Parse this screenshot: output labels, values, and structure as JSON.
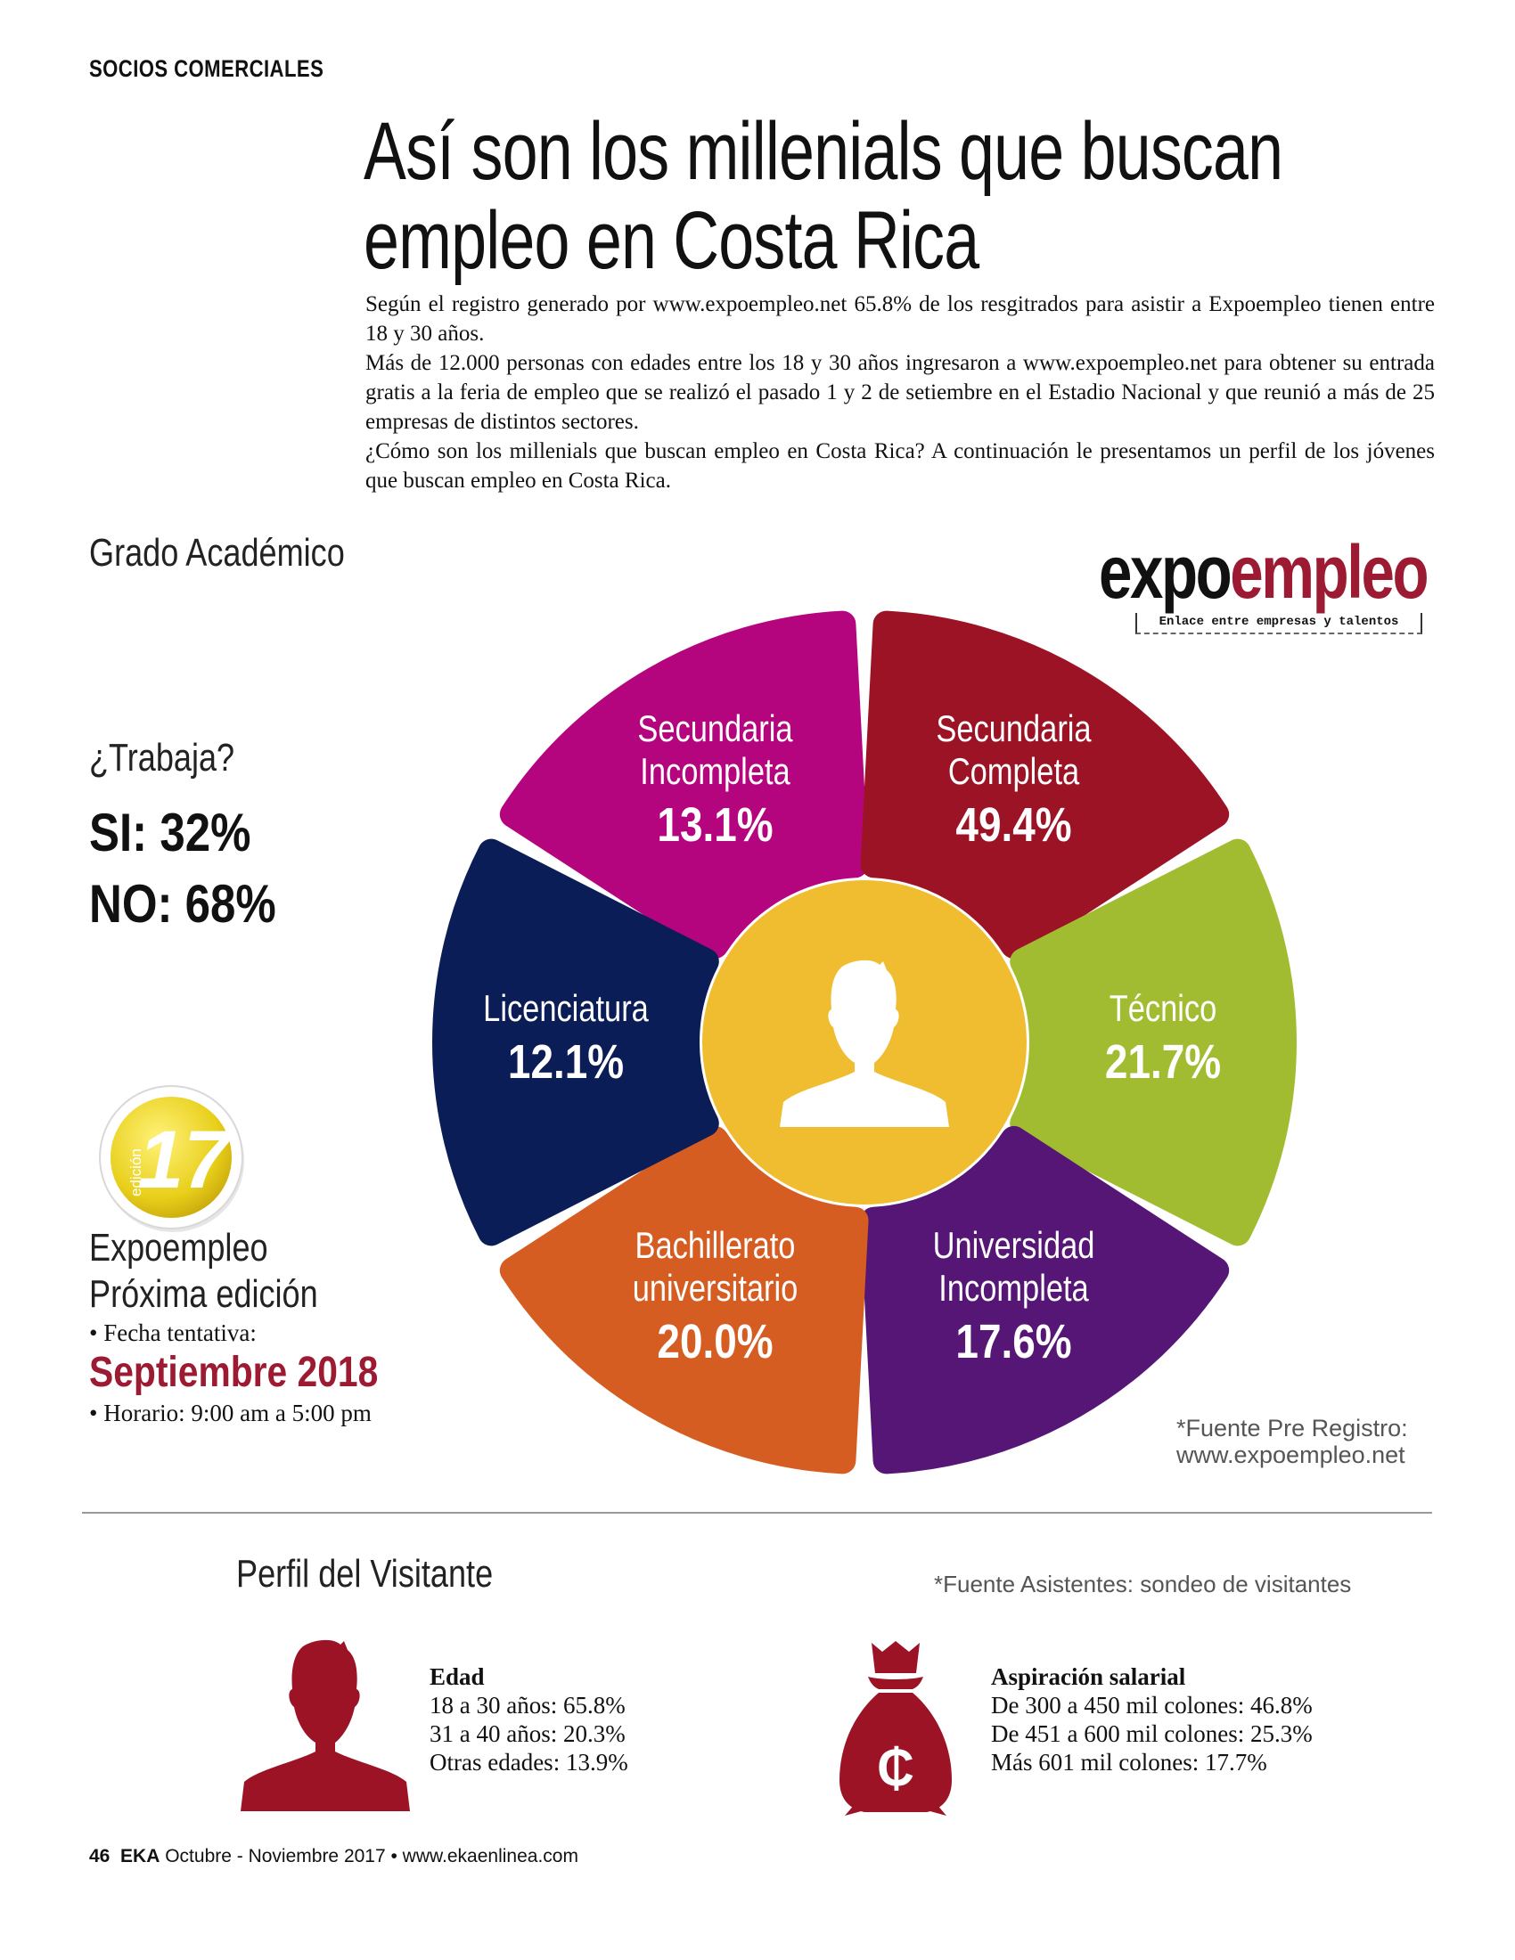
{
  "section_label": "SOCIOS COMERCIALES",
  "headline": {
    "line1": "Así son los millenials que buscan",
    "line2": "empleo en Costa Rica"
  },
  "intro": {
    "p1": "Según el registro generado por www.expoempleo.net 65.8% de los resgitrados para asistir a Expoempleo tienen entre 18 y 30 años.",
    "p2": "Más de 12.000 personas con edades entre los 18 y 30 años ingresaron a www.expoempleo.net para obtener su entrada gratis a la feria de empleo que se realizó el pasado 1 y 2 de setiembre en el Estadio Nacional y que reunió a más de 25 empresas de distintos sectores.",
    "p3": "¿Cómo son los millenials que buscan empleo en Costa Rica? A continuación le presentamos un perfil de los jóvenes que buscan empleo en Costa Rica."
  },
  "grado_heading": "Grado Académico",
  "logo": {
    "expo": "expo",
    "empleo": "empleo",
    "tagline": "Enlace entre empresas y talentos"
  },
  "trabaja": {
    "question": "¿Trabaja?",
    "si": "SI: 32%",
    "no": "NO: 68%"
  },
  "chart_data": {
    "type": "pie",
    "title": "Grado Académico",
    "slices": [
      {
        "label_line1": "Secundaria",
        "label_line2": "Incompleta",
        "value": 13.1,
        "display": "13.1%",
        "color": "#b5057e"
      },
      {
        "label_line1": "Secundaria",
        "label_line2": "Completa",
        "value": 49.4,
        "display": "49.4%",
        "color": "#9c1326"
      },
      {
        "label_line1": "Técnico",
        "label_line2": "",
        "value": 21.7,
        "display": "21.7%",
        "color": "#a2bc31"
      },
      {
        "label_line1": "Universidad",
        "label_line2": "Incompleta",
        "value": 17.6,
        "display": "17.6%",
        "color": "#561675"
      },
      {
        "label_line1": "Bachillerato",
        "label_line2": "universitario",
        "value": 20.0,
        "display": "20.0%",
        "color": "#d55d22"
      },
      {
        "label_line1": "Licenciatura",
        "label_line2": "",
        "value": 12.1,
        "display": "12.1%",
        "color": "#0b1d56"
      }
    ],
    "center_color": "#efbd2f",
    "center_icon": "person-silhouette-icon"
  },
  "edition": {
    "word": "edición",
    "number": "17"
  },
  "next_edition": {
    "line1": "Expoempleo",
    "line2": "Próxima edición",
    "date_label": "• Fecha tentativa:",
    "date": "Septiembre 2018",
    "hours": "• Horario: 9:00 am a 5:00 pm"
  },
  "source_note": {
    "line1": "*Fuente Pre Registro:",
    "line2": "www.expoempleo.net"
  },
  "perfil_heading": "Perfil del Visitante",
  "visitor_note": "*Fuente Asistentes: sondeo de visitantes",
  "edad": {
    "title": "Edad",
    "items": [
      "18 a 30 años: 65.8%",
      "31 a 40 años: 20.3%",
      "Otras edades: 13.9%"
    ]
  },
  "salario": {
    "title": "Aspiración salarial",
    "items": [
      "De 300 a 450 mil colones: 46.8%",
      "De 451 a 600 mil colones: 25.3%",
      "Más 601 mil colones: 17.7%"
    ],
    "currency_symbol": "₵"
  },
  "footer": {
    "page": "46",
    "brand": "EKA",
    "rest": "Octubre - Noviembre 2017 • www.ekaenlinea.com"
  },
  "colors": {
    "accent": "#9c1b33"
  }
}
